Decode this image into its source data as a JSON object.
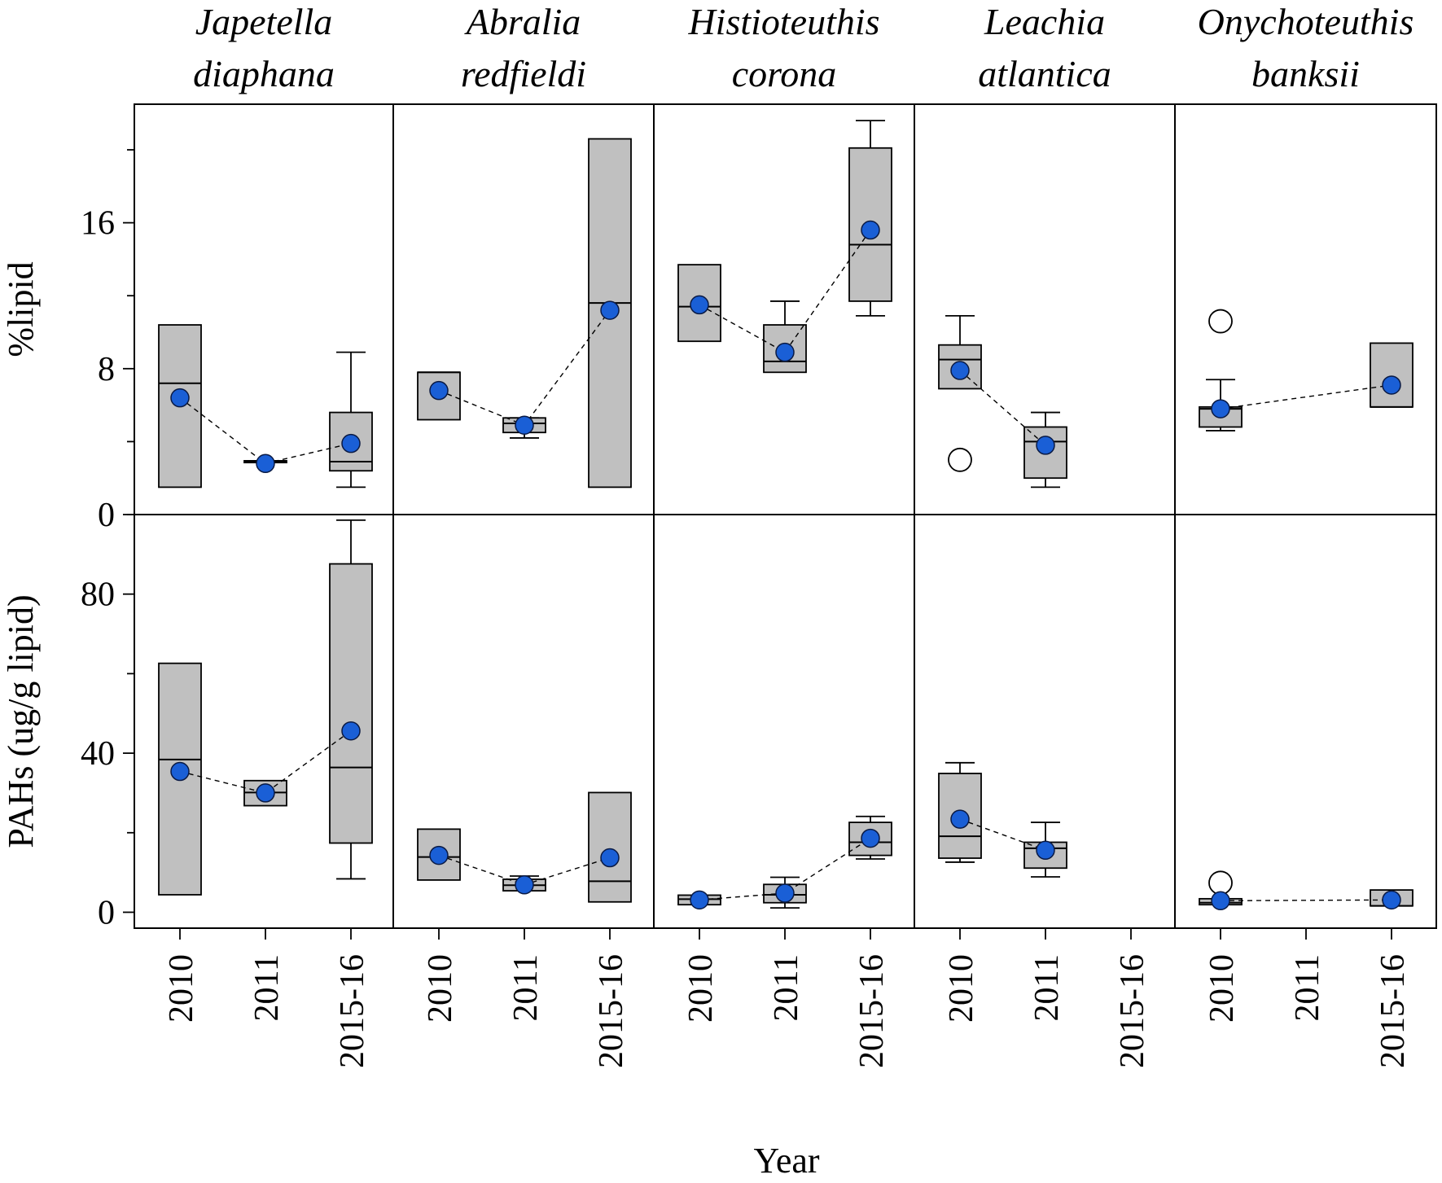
{
  "chart_data": {
    "type": "boxplot",
    "xlabel": "Year",
    "categories": [
      "2010",
      "2011",
      "2015-16"
    ],
    "colors": {
      "box": "#c0c0c0",
      "mean": "#1a5fd6",
      "outlier": "#ffffff"
    },
    "species": [
      {
        "name_line1": "Japetella",
        "name_line2": "diaphana"
      },
      {
        "name_line1": "Abralia",
        "name_line2": "redfieldi"
      },
      {
        "name_line1": "Histioteuthis",
        "name_line2": "corona"
      },
      {
        "name_line1": "Leachia",
        "name_line2": "atlantica"
      },
      {
        "name_line1": "Onychoteuthis",
        "name_line2": "banksii"
      }
    ],
    "rows": [
      {
        "ylabel": "%lipid",
        "ylim": [
          0,
          22.5
        ],
        "yticks": [
          0,
          8,
          16
        ],
        "yticklabels": [
          "0",
          "8",
          "16"
        ],
        "minor_ticks": [
          4,
          12,
          20
        ],
        "panels": [
          {
            "boxes": [
              {
                "cat": "2010",
                "q1": 1.5,
                "median": 7.2,
                "q3": 10.4,
                "mean": 6.4
              },
              {
                "cat": "2011",
                "q1": 2.85,
                "median": 2.9,
                "q3": 2.95,
                "mean": 2.8
              },
              {
                "cat": "2015-16",
                "q1": 2.4,
                "median": 2.9,
                "q3": 5.6,
                "mean": 3.9,
                "whisker_low": 1.5,
                "whisker_high": 8.9
              }
            ]
          },
          {
            "boxes": [
              {
                "cat": "2010",
                "q1": 5.2,
                "median": 7.8,
                "q3": 7.8,
                "mean": 6.8
              },
              {
                "cat": "2011",
                "q1": 4.5,
                "median": 5.0,
                "q3": 5.3,
                "mean": 4.9,
                "whisker_low": 4.2,
                "whisker_high": 5.3
              },
              {
                "cat": "2015-16",
                "q1": 1.5,
                "median": 11.6,
                "q3": 20.6,
                "mean": 11.2
              }
            ]
          },
          {
            "boxes": [
              {
                "cat": "2010",
                "q1": 9.5,
                "median": 11.4,
                "q3": 13.7,
                "mean": 11.5
              },
              {
                "cat": "2011",
                "q1": 7.8,
                "median": 8.4,
                "q3": 10.4,
                "mean": 8.9,
                "whisker_high": 11.7
              },
              {
                "cat": "2015-16",
                "q1": 11.7,
                "median": 14.8,
                "q3": 20.1,
                "mean": 15.6,
                "whisker_low": 10.9,
                "whisker_high": 21.6
              }
            ]
          },
          {
            "boxes": [
              {
                "cat": "2010",
                "q1": 6.9,
                "median": 8.5,
                "q3": 9.3,
                "mean": 7.9,
                "whisker_high": 10.9,
                "outliers": [
                  3.0
                ]
              },
              {
                "cat": "2011",
                "q1": 2.0,
                "median": 4.0,
                "q3": 4.8,
                "mean": 3.8,
                "whisker_low": 1.5,
                "whisker_high": 5.6
              }
            ]
          },
          {
            "boxes": [
              {
                "cat": "2010",
                "q1": 4.8,
                "median": 5.8,
                "q3": 5.9,
                "mean": 5.8,
                "whisker_low": 4.6,
                "whisker_high": 7.4,
                "outliers": [
                  10.6
                ]
              },
              {
                "cat": "2015-16",
                "q1": 5.9,
                "median": 5.9,
                "q3": 9.4,
                "mean": 7.1
              }
            ]
          }
        ]
      },
      {
        "ylabel": "PAHs (ug/g lipid)",
        "ylim": [
          -4,
          100
        ],
        "yticks": [
          0,
          40,
          80
        ],
        "yticklabels": [
          "0",
          "40",
          "80"
        ],
        "minor_ticks": [
          20,
          60,
          100
        ],
        "panels": [
          {
            "boxes": [
              {
                "cat": "2010",
                "q1": 4.4,
                "median": 38.4,
                "q3": 62.6,
                "mean": 35.4
              },
              {
                "cat": "2011",
                "q1": 26.8,
                "median": 30.1,
                "q3": 33.1,
                "mean": 30.0
              },
              {
                "cat": "2015-16",
                "q1": 17.4,
                "median": 36.4,
                "q3": 87.6,
                "mean": 45.6,
                "whisker_low": 8.4,
                "whisker_high": 98.6
              }
            ]
          },
          {
            "boxes": [
              {
                "cat": "2010",
                "q1": 8.1,
                "median": 13.9,
                "q3": 20.9,
                "mean": 14.3
              },
              {
                "cat": "2011",
                "q1": 5.4,
                "median": 6.8,
                "q3": 8.3,
                "mean": 6.9,
                "whisker_high": 9.1
              },
              {
                "cat": "2015-16",
                "q1": 2.6,
                "median": 7.8,
                "q3": 30.1,
                "mean": 13.7
              }
            ]
          },
          {
            "boxes": [
              {
                "cat": "2010",
                "q1": 1.9,
                "median": 3.3,
                "q3": 4.3,
                "mean": 3.1
              },
              {
                "cat": "2011",
                "q1": 2.4,
                "median": 4.4,
                "q3": 7.0,
                "mean": 4.8,
                "whisker_low": 1.1,
                "whisker_high": 8.8
              },
              {
                "cat": "2015-16",
                "q1": 14.3,
                "median": 17.6,
                "q3": 22.6,
                "mean": 18.6,
                "whisker_low": 13.4,
                "whisker_high": 24.1
              }
            ]
          },
          {
            "boxes": [
              {
                "cat": "2010",
                "q1": 13.6,
                "median": 19.1,
                "q3": 34.9,
                "mean": 23.4,
                "whisker_low": 12.6,
                "whisker_high": 37.6
              },
              {
                "cat": "2011",
                "q1": 11.1,
                "median": 16.1,
                "q3": 17.6,
                "mean": 15.6,
                "whisker_low": 8.9,
                "whisker_high": 22.6
              }
            ]
          },
          {
            "boxes": [
              {
                "cat": "2010",
                "q1": 1.9,
                "median": 2.4,
                "q3": 3.4,
                "mean": 2.9,
                "outliers": [
                  7.4
                ]
              },
              {
                "cat": "2015-16",
                "q1": 1.6,
                "median": 1.6,
                "q3": 5.6,
                "mean": 3.1
              }
            ]
          }
        ]
      }
    ]
  }
}
